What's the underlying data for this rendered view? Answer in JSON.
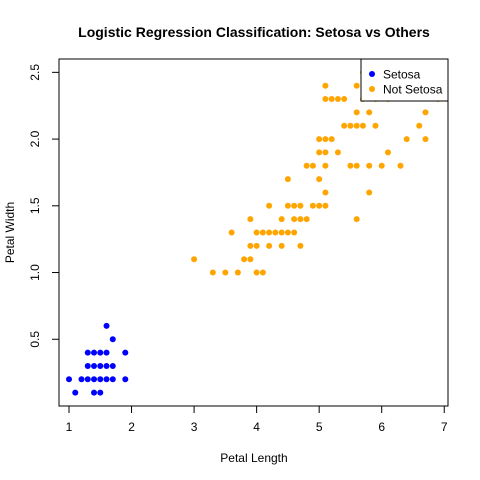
{
  "chart_data": {
    "type": "scatter",
    "title": "Logistic Regression Classification: Setosa vs Others",
    "xlabel": "Petal Length",
    "ylabel": "Petal Width",
    "xlim": [
      0.84,
      7.06
    ],
    "ylim": [
      0.0,
      2.6
    ],
    "x_ticks": [
      1,
      2,
      3,
      4,
      5,
      6,
      7
    ],
    "y_ticks": [
      0.5,
      1.0,
      1.5,
      2.0,
      2.5
    ],
    "y_tick_labels": [
      "0.5",
      "1.0",
      "1.5",
      "2.0",
      "2.5"
    ],
    "grid": false,
    "legend_position": "top-right",
    "series": [
      {
        "name": "Setosa",
        "color": "#0000ff",
        "points": [
          [
            1.0,
            0.2
          ],
          [
            1.1,
            0.1
          ],
          [
            1.2,
            0.2
          ],
          [
            1.3,
            0.2
          ],
          [
            1.3,
            0.3
          ],
          [
            1.3,
            0.4
          ],
          [
            1.4,
            0.1
          ],
          [
            1.4,
            0.2
          ],
          [
            1.4,
            0.3
          ],
          [
            1.5,
            0.1
          ],
          [
            1.5,
            0.2
          ],
          [
            1.5,
            0.4
          ],
          [
            1.6,
            0.2
          ],
          [
            1.6,
            0.4
          ],
          [
            1.6,
            0.6
          ],
          [
            1.7,
            0.2
          ],
          [
            1.7,
            0.3
          ],
          [
            1.7,
            0.5
          ],
          [
            1.5,
            0.3
          ],
          [
            1.6,
            0.3
          ],
          [
            1.4,
            0.4
          ],
          [
            1.9,
            0.2
          ],
          [
            1.9,
            0.4
          ]
        ]
      },
      {
        "name": "Not Setosa",
        "color": "#ffa500",
        "points": [
          [
            3.0,
            1.1
          ],
          [
            3.3,
            1.0
          ],
          [
            3.5,
            1.0
          ],
          [
            3.6,
            1.3
          ],
          [
            3.7,
            1.0
          ],
          [
            3.8,
            1.1
          ],
          [
            3.9,
            1.1
          ],
          [
            3.9,
            1.2
          ],
          [
            3.9,
            1.4
          ],
          [
            4.0,
            1.0
          ],
          [
            4.0,
            1.2
          ],
          [
            4.0,
            1.3
          ],
          [
            4.1,
            1.0
          ],
          [
            4.1,
            1.3
          ],
          [
            4.2,
            1.2
          ],
          [
            4.2,
            1.3
          ],
          [
            4.2,
            1.5
          ],
          [
            4.3,
            1.3
          ],
          [
            4.4,
            1.2
          ],
          [
            4.4,
            1.3
          ],
          [
            4.4,
            1.4
          ],
          [
            4.5,
            1.3
          ],
          [
            4.5,
            1.5
          ],
          [
            4.5,
            1.7
          ],
          [
            4.6,
            1.3
          ],
          [
            4.6,
            1.4
          ],
          [
            4.6,
            1.5
          ],
          [
            4.7,
            1.2
          ],
          [
            4.7,
            1.4
          ],
          [
            4.7,
            1.5
          ],
          [
            4.8,
            1.4
          ],
          [
            4.8,
            1.8
          ],
          [
            4.9,
            1.5
          ],
          [
            4.9,
            1.8
          ],
          [
            5.0,
            1.5
          ],
          [
            5.0,
            1.7
          ],
          [
            5.0,
            1.9
          ],
          [
            5.0,
            2.0
          ],
          [
            5.1,
            1.5
          ],
          [
            5.1,
            1.6
          ],
          [
            5.1,
            1.8
          ],
          [
            5.1,
            1.9
          ],
          [
            5.1,
            2.0
          ],
          [
            5.1,
            2.3
          ],
          [
            5.1,
            2.4
          ],
          [
            5.2,
            2.0
          ],
          [
            5.2,
            2.3
          ],
          [
            5.3,
            1.9
          ],
          [
            5.3,
            2.3
          ],
          [
            5.4,
            2.1
          ],
          [
            5.4,
            2.3
          ],
          [
            5.5,
            1.8
          ],
          [
            5.5,
            2.1
          ],
          [
            5.6,
            1.4
          ],
          [
            5.6,
            1.8
          ],
          [
            5.6,
            2.1
          ],
          [
            5.6,
            2.2
          ],
          [
            5.6,
            2.4
          ],
          [
            5.7,
            2.1
          ],
          [
            5.7,
            2.3
          ],
          [
            5.7,
            2.5
          ],
          [
            5.8,
            1.6
          ],
          [
            5.8,
            1.8
          ],
          [
            5.8,
            2.2
          ],
          [
            5.9,
            2.1
          ],
          [
            5.9,
            2.3
          ],
          [
            6.0,
            1.8
          ],
          [
            6.0,
            2.5
          ],
          [
            6.1,
            1.9
          ],
          [
            6.1,
            2.3
          ],
          [
            6.1,
            2.5
          ],
          [
            6.3,
            1.8
          ],
          [
            6.4,
            2.0
          ],
          [
            6.6,
            2.1
          ],
          [
            6.7,
            2.0
          ],
          [
            6.7,
            2.2
          ],
          [
            6.9,
            2.3
          ]
        ]
      }
    ]
  }
}
